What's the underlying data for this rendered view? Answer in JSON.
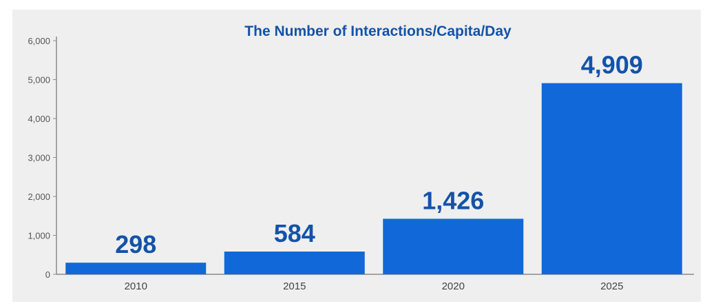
{
  "colors": {
    "bar": "#1168d8",
    "value_label": "#1353a8",
    "title": "#1353a8",
    "axis": "#8a8a8a",
    "panel": "#efefef"
  },
  "chart_data": {
    "type": "bar",
    "title": "The Number of Interactions/Capita/Day",
    "xlabel": "",
    "ylabel": "",
    "categories": [
      "2010",
      "2015",
      "2020",
      "2025"
    ],
    "values": [
      298,
      584,
      1426,
      4909
    ],
    "value_labels": [
      "298",
      "584",
      "1,426",
      "4,909"
    ],
    "ylim": [
      0,
      6000
    ],
    "yticks": [
      0,
      1000,
      2000,
      3000,
      4000,
      5000,
      6000
    ],
    "ytick_labels": [
      "0",
      "1,000",
      "2,000",
      "3,000",
      "4,000",
      "5,000",
      "6,000"
    ],
    "grid": false,
    "legend": "none"
  }
}
